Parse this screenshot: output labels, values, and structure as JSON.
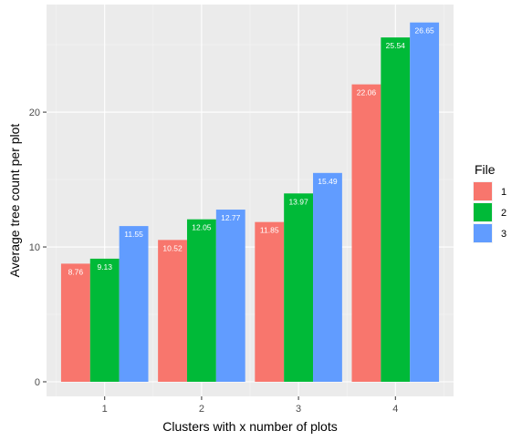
{
  "chart_data": {
    "type": "bar",
    "categories": [
      "1",
      "2",
      "3",
      "4"
    ],
    "series": [
      {
        "name": "1",
        "color": "#F8766D",
        "values": [
          8.76,
          10.52,
          11.85,
          22.06
        ]
      },
      {
        "name": "2",
        "color": "#00BA38",
        "values": [
          9.13,
          12.05,
          13.97,
          25.54
        ]
      },
      {
        "name": "3",
        "color": "#619CFF",
        "values": [
          11.55,
          12.77,
          15.49,
          26.65
        ]
      }
    ],
    "data_labels": true,
    "title": "",
    "xlabel": "Clusters with x number of plots",
    "ylabel": "Average tree count per plot",
    "ylim": [
      0,
      27.98
    ],
    "yticks": [
      0,
      10,
      20
    ],
    "grid": true,
    "legend": {
      "title": "File",
      "position": "right"
    },
    "panel_background": "#EBEBEB"
  }
}
